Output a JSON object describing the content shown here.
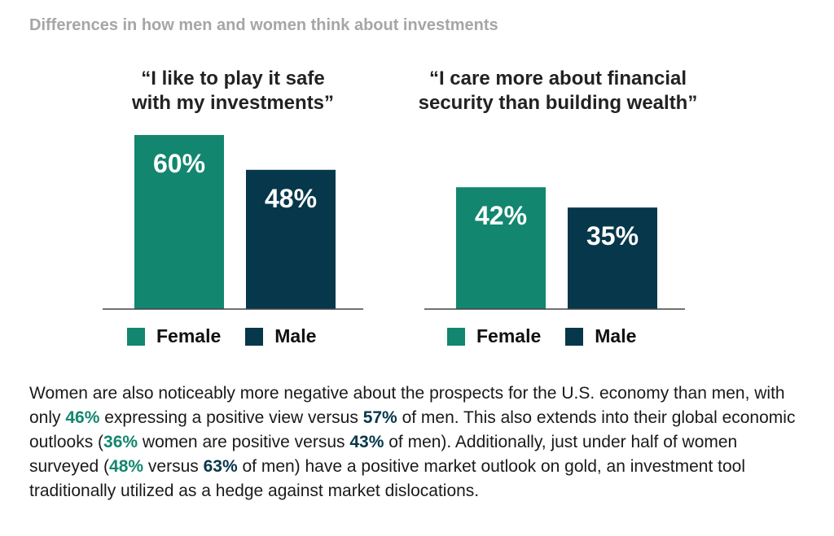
{
  "page_title": "Differences in how men and women think about investments",
  "colors": {
    "female": "#13866f",
    "male": "#06374a",
    "axis": "#444444"
  },
  "chart_data": [
    {
      "type": "bar",
      "title_lines": [
        "“I like to play it safe",
        "with my investments”"
      ],
      "categories": [
        "Female",
        "Male"
      ],
      "values": [
        60,
        48
      ],
      "labels": [
        "60%",
        "48%"
      ],
      "ylim": [
        0,
        60
      ],
      "legend": [
        "Female",
        "Male"
      ]
    },
    {
      "type": "bar",
      "title_lines": [
        "“I care more about financial",
        "security than building wealth”"
      ],
      "categories": [
        "Female",
        "Male"
      ],
      "values": [
        42,
        35
      ],
      "labels": [
        "42%",
        "35%"
      ],
      "ylim": [
        0,
        60
      ],
      "legend": [
        "Female",
        "Male"
      ]
    }
  ],
  "paragraph": {
    "s1": "Women are also noticeably more negative about the prospects for the U.S. economy than men, with only ",
    "v1": "46%",
    "s2": " expressing a positive view versus ",
    "v2": "57%",
    "s3": " of men. This also extends into their global economic outlooks (",
    "v3": "36%",
    "s4": " women are positive versus ",
    "v4": "43%",
    "s5": " of men). Additionally, just under half of women surveyed (",
    "v5": "48%",
    "s6": " versus ",
    "v6": "63%",
    "s7": " of men) have a positive market outlook on gold, an investment tool traditionally utilized as a hedge against market dislocations."
  }
}
